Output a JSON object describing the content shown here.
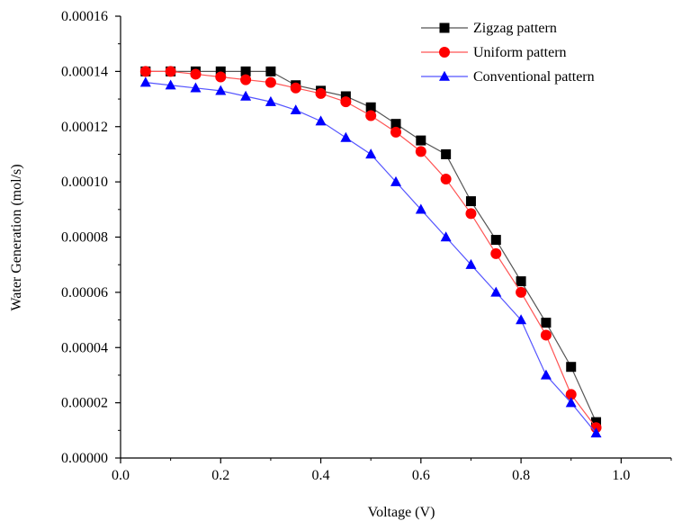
{
  "chart_data": {
    "type": "line",
    "xlabel": "Voltage (V)",
    "ylabel": "Water Generation (mol/s)",
    "xlim": [
      0.0,
      1.1
    ],
    "ylim": [
      0.0,
      0.00016
    ],
    "x_ticks": [
      "0.0",
      "0.2",
      "0.4",
      "0.6",
      "0.8",
      "1.0"
    ],
    "x_tick_values": [
      0.0,
      0.2,
      0.4,
      0.6,
      0.8,
      1.0
    ],
    "y_ticks": [
      "0.00000",
      "0.00002",
      "0.00004",
      "0.00006",
      "0.00008",
      "0.00010",
      "0.00012",
      "0.00014",
      "0.00016"
    ],
    "y_tick_values": [
      0,
      2e-05,
      4e-05,
      6e-05,
      8e-05,
      0.0001,
      0.00012,
      0.00014,
      0.00016
    ],
    "grid": false,
    "legend_position": "top-right",
    "x": [
      0.05,
      0.1,
      0.15,
      0.2,
      0.25,
      0.3,
      0.35,
      0.4,
      0.45,
      0.5,
      0.55,
      0.6,
      0.65,
      0.7,
      0.75,
      0.8,
      0.85,
      0.9,
      0.95
    ],
    "series": [
      {
        "name": "Zigzag pattern",
        "marker": "square",
        "marker_color": "#000000",
        "line_color": "#555555",
        "values": [
          0.00014,
          0.00014,
          0.00014,
          0.00014,
          0.00014,
          0.00014,
          0.000135,
          0.000133,
          0.000131,
          0.000127,
          0.000121,
          0.000115,
          0.00011,
          9.3e-05,
          7.9e-05,
          6.4e-05,
          4.9e-05,
          3.3e-05,
          1.3e-05
        ]
      },
      {
        "name": "Uniform pattern",
        "marker": "circle",
        "marker_color": "#ff0000",
        "line_color": "#ff5555",
        "values": [
          0.00014,
          0.00014,
          0.000139,
          0.000138,
          0.000137,
          0.000136,
          0.000134,
          0.000132,
          0.000129,
          0.000124,
          0.000118,
          0.000111,
          0.000101,
          8.85e-05,
          7.4e-05,
          6e-05,
          4.45e-05,
          2.3e-05,
          1.1e-05
        ]
      },
      {
        "name": "Conventional pattern",
        "marker": "triangle",
        "marker_color": "#0000ff",
        "line_color": "#5555ff",
        "values": [
          0.000136,
          0.000135,
          0.000134,
          0.000133,
          0.000131,
          0.000129,
          0.000126,
          0.000122,
          0.000116,
          0.00011,
          0.0001,
          9e-05,
          8e-05,
          7e-05,
          6e-05,
          5e-05,
          3e-05,
          2e-05,
          9e-06
        ]
      }
    ]
  }
}
